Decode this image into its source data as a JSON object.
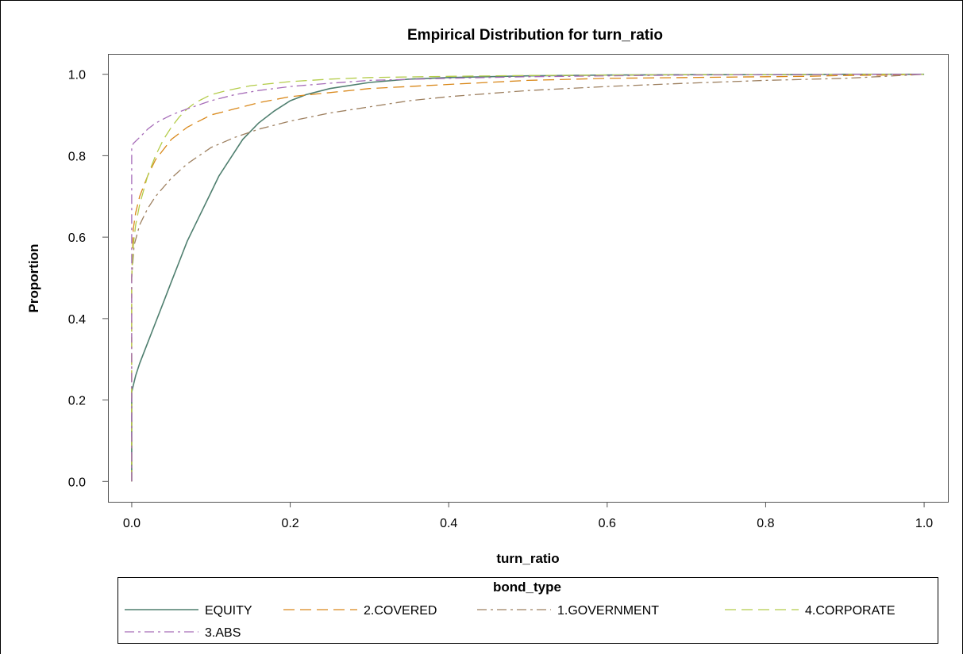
{
  "chart_data": {
    "type": "line",
    "title": "Empirical Distribution for turn_ratio",
    "xlabel": "turn_ratio",
    "ylabel": "Proportion",
    "xlim": [
      -0.03,
      1.03
    ],
    "ylim": [
      -0.05,
      1.05
    ],
    "x_ticks": [
      "0.0",
      "0.2",
      "0.4",
      "0.6",
      "0.8",
      "1.0"
    ],
    "y_ticks": [
      "0.0",
      "0.2",
      "0.4",
      "0.6",
      "0.8",
      "1.0"
    ],
    "grid": false,
    "legend": {
      "title": "bond_type",
      "placement": "bottom",
      "entries": [
        "EQUITY",
        "2.COVERED",
        "1.GOVERNMENT",
        "4.CORPORATE",
        "3.ABS"
      ]
    },
    "series": [
      {
        "name": "EQUITY",
        "color": "#4f7f6f",
        "dash": "solid",
        "x": [
          0.0,
          0.0,
          0.0,
          0.005,
          0.01,
          0.02,
          0.03,
          0.04,
          0.05,
          0.06,
          0.07,
          0.08,
          0.09,
          0.1,
          0.11,
          0.12,
          0.13,
          0.14,
          0.15,
          0.16,
          0.18,
          0.2,
          0.22,
          0.25,
          0.3,
          0.35,
          0.4,
          0.5,
          0.6,
          0.7,
          0.8,
          0.9,
          1.0
        ],
        "y": [
          0.0,
          0.1,
          0.22,
          0.26,
          0.29,
          0.34,
          0.39,
          0.44,
          0.49,
          0.54,
          0.59,
          0.63,
          0.67,
          0.71,
          0.75,
          0.78,
          0.81,
          0.84,
          0.86,
          0.88,
          0.91,
          0.935,
          0.95,
          0.965,
          0.98,
          0.988,
          0.992,
          0.996,
          0.998,
          0.999,
          0.999,
          1.0,
          1.0
        ]
      },
      {
        "name": "2.COVERED",
        "color": "#d9881a",
        "dash": "long",
        "x": [
          0.0,
          0.0,
          0.002,
          0.005,
          0.01,
          0.02,
          0.03,
          0.05,
          0.07,
          0.1,
          0.13,
          0.16,
          0.2,
          0.25,
          0.3,
          0.4,
          0.5,
          0.6,
          0.7,
          0.8,
          0.85,
          0.9,
          0.95,
          1.0
        ],
        "y": [
          0.0,
          0.5,
          0.62,
          0.66,
          0.7,
          0.75,
          0.79,
          0.84,
          0.87,
          0.9,
          0.915,
          0.93,
          0.945,
          0.955,
          0.965,
          0.975,
          0.985,
          0.99,
          0.992,
          0.994,
          0.995,
          0.997,
          0.998,
          1.0
        ]
      },
      {
        "name": "1.GOVERNMENT",
        "color": "#9e8060",
        "dash": "dashdot",
        "x": [
          0.0,
          0.0,
          0.003,
          0.01,
          0.02,
          0.03,
          0.05,
          0.07,
          0.1,
          0.13,
          0.16,
          0.2,
          0.25,
          0.3,
          0.35,
          0.4,
          0.5,
          0.6,
          0.7,
          0.8,
          0.9,
          0.95,
          1.0
        ],
        "y": [
          0.0,
          0.5,
          0.58,
          0.63,
          0.67,
          0.7,
          0.745,
          0.78,
          0.82,
          0.845,
          0.865,
          0.885,
          0.905,
          0.92,
          0.935,
          0.945,
          0.96,
          0.97,
          0.978,
          0.985,
          0.99,
          0.995,
          1.0
        ]
      },
      {
        "name": "4.CORPORATE",
        "color": "#b4cc4a",
        "dash": "long",
        "x": [
          0.0,
          0.0,
          0.002,
          0.005,
          0.01,
          0.02,
          0.03,
          0.04,
          0.05,
          0.06,
          0.07,
          0.08,
          0.1,
          0.12,
          0.15,
          0.2,
          0.25,
          0.3,
          0.4,
          0.5,
          0.6,
          0.7,
          0.8,
          0.9,
          1.0
        ],
        "y": [
          0.0,
          0.5,
          0.58,
          0.63,
          0.68,
          0.75,
          0.8,
          0.84,
          0.87,
          0.895,
          0.915,
          0.93,
          0.95,
          0.96,
          0.972,
          0.982,
          0.988,
          0.992,
          0.995,
          0.997,
          0.998,
          0.999,
          0.999,
          1.0,
          1.0
        ]
      },
      {
        "name": "3.ABS",
        "color": "#a66cb8",
        "dash": "dashdot",
        "x": [
          0.0,
          0.0,
          0.002,
          0.01,
          0.02,
          0.03,
          0.05,
          0.07,
          0.1,
          0.13,
          0.16,
          0.2,
          0.25,
          0.3,
          0.4,
          0.5,
          0.6,
          0.7,
          0.8,
          0.9,
          1.0
        ],
        "y": [
          0.0,
          0.82,
          0.83,
          0.845,
          0.865,
          0.88,
          0.9,
          0.915,
          0.935,
          0.95,
          0.96,
          0.97,
          0.978,
          0.985,
          0.99,
          0.994,
          0.996,
          0.998,
          0.999,
          1.0,
          1.0
        ]
      }
    ]
  }
}
